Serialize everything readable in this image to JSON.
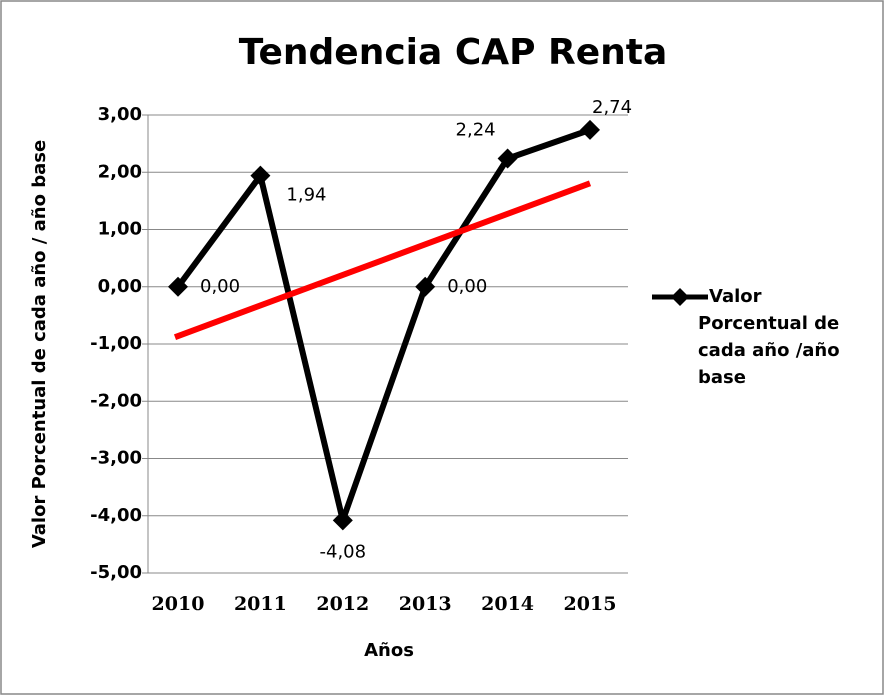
{
  "chart_data": {
    "type": "line",
    "title": "Tendencia CAP Renta",
    "x_label": "Años",
    "y_label": "Valor Porcentual de cada año / año base",
    "categories": [
      "2010",
      "2011",
      "2012",
      "2013",
      "2014",
      "2015"
    ],
    "series": [
      {
        "name": "Valor Porcentual de cada año /año base",
        "color": "#000000",
        "values": [
          0,
          1.94,
          -4.08,
          0,
          2.24,
          2.74
        ],
        "value_labels": [
          "0,00",
          "1,94",
          "-4,08",
          "0,00",
          "2,24",
          "2,74"
        ]
      }
    ],
    "trendline": {
      "type": "linear",
      "color": "#ff0000"
    },
    "ylim": [
      -5,
      3
    ],
    "yticks": [
      {
        "value": -5,
        "label": "-5,00"
      },
      {
        "value": -4,
        "label": "-4,00"
      },
      {
        "value": -3,
        "label": "-3,00"
      },
      {
        "value": -2,
        "label": "-2,00"
      },
      {
        "value": -1,
        "label": "-1,00"
      },
      {
        "value": 0,
        "label": "0,00"
      },
      {
        "value": 1,
        "label": "1,00"
      },
      {
        "value": 2,
        "label": "2,00"
      },
      {
        "value": 3,
        "label": "3,00"
      }
    ],
    "grid": true,
    "legend": "right"
  }
}
